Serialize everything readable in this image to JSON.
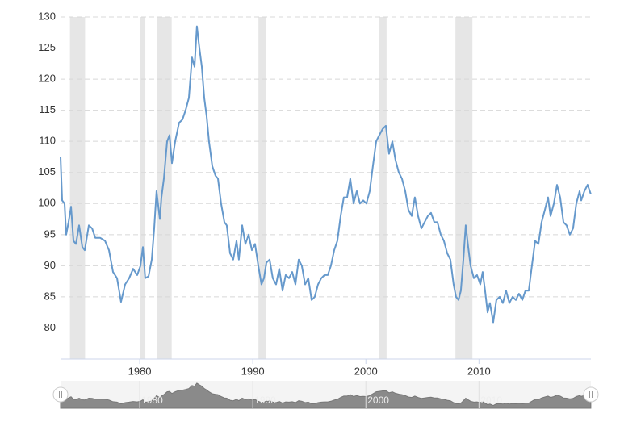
{
  "chart_data": {
    "type": "line",
    "color": "#6699cc",
    "grid": true,
    "recession_color": "#e6e6e6",
    "recessions": [
      [
        1973.83,
        1975.17
      ],
      [
        1980.0,
        1980.5
      ],
      [
        1981.5,
        1982.83
      ],
      [
        1990.5,
        1991.17
      ],
      [
        2001.17,
        2001.83
      ],
      [
        2007.92,
        2009.42
      ]
    ],
    "xlim": [
      1973,
      2019.9
    ],
    "xticks": [
      1980,
      1990,
      2000,
      2010
    ],
    "ylim": [
      75,
      130
    ],
    "yticks": [
      80,
      85,
      90,
      95,
      100,
      105,
      110,
      115,
      120,
      125,
      130
    ],
    "x": [
      1973.0,
      1973.14,
      1973.36,
      1973.5,
      1973.71,
      1973.93,
      1974.14,
      1974.36,
      1974.64,
      1974.93,
      1975.14,
      1975.5,
      1975.79,
      1976.07,
      1976.5,
      1976.93,
      1977.28,
      1977.64,
      1978.0,
      1978.35,
      1978.71,
      1979.07,
      1979.42,
      1979.78,
      1980.07,
      1980.28,
      1980.49,
      1980.78,
      1981.07,
      1981.28,
      1981.49,
      1981.78,
      1981.92,
      1982.14,
      1982.42,
      1982.64,
      1982.85,
      1983.14,
      1983.49,
      1983.78,
      1984.06,
      1984.35,
      1984.63,
      1984.85,
      1985.06,
      1985.28,
      1985.49,
      1985.71,
      1985.92,
      1986.13,
      1986.42,
      1986.7,
      1986.92,
      1987.2,
      1987.49,
      1987.7,
      1987.99,
      1988.27,
      1988.56,
      1988.77,
      1989.06,
      1989.35,
      1989.63,
      1989.92,
      1990.2,
      1990.49,
      1990.77,
      1990.99,
      1991.2,
      1991.49,
      1991.77,
      1992.06,
      1992.34,
      1992.63,
      1992.91,
      1993.2,
      1993.49,
      1993.77,
      1994.06,
      1994.34,
      1994.63,
      1994.91,
      1995.2,
      1995.48,
      1995.77,
      1996.06,
      1996.34,
      1996.63,
      1996.91,
      1997.2,
      1997.48,
      1997.77,
      1998.05,
      1998.34,
      1998.62,
      1998.91,
      1999.2,
      1999.48,
      1999.77,
      2000.05,
      2000.34,
      2000.62,
      2000.91,
      2001.19,
      2001.48,
      2001.77,
      2002.05,
      2002.34,
      2002.62,
      2002.91,
      2003.19,
      2003.48,
      2003.76,
      2004.05,
      2004.33,
      2004.62,
      2004.91,
      2005.19,
      2005.48,
      2005.76,
      2006.05,
      2006.33,
      2006.62,
      2006.9,
      2007.19,
      2007.47,
      2007.76,
      2007.97,
      2008.19,
      2008.4,
      2008.62,
      2008.83,
      2009.05,
      2009.26,
      2009.55,
      2009.83,
      2010.12,
      2010.33,
      2010.54,
      2010.76,
      2010.97,
      2011.26,
      2011.54,
      2011.83,
      2012.11,
      2012.4,
      2012.69,
      2012.97,
      2013.26,
      2013.54,
      2013.83,
      2014.11,
      2014.4,
      2014.68,
      2014.97,
      2015.26,
      2015.54,
      2015.83,
      2016.11,
      2016.33,
      2016.62,
      2016.9,
      2017.18,
      2017.47,
      2017.75,
      2018.04,
      2018.32,
      2018.61,
      2018.9,
      2019.04,
      2019.32,
      2019.61,
      2019.89
    ],
    "values": [
      107.5,
      100.5,
      100,
      95,
      97,
      99.5,
      94,
      93.5,
      96.5,
      93,
      92.5,
      96.5,
      96,
      94.5,
      94.5,
      94,
      92.5,
      89,
      88,
      84.2,
      87,
      88,
      89.5,
      88.5,
      90,
      93,
      88,
      88.3,
      91,
      96,
      102,
      97.5,
      101,
      104,
      110,
      111,
      106.5,
      110,
      113,
      113.5,
      115,
      117,
      123.5,
      122,
      128.5,
      125,
      122,
      117,
      114,
      110,
      106,
      104.5,
      104,
      100,
      97,
      96.5,
      92,
      91,
      94,
      91,
      96.5,
      93.5,
      95,
      92.5,
      93.5,
      90,
      87,
      88,
      90.5,
      91,
      88,
      87,
      89.5,
      86,
      88.5,
      88,
      89,
      87,
      91,
      90,
      87,
      88,
      84.5,
      85,
      87,
      88,
      88.5,
      88.5,
      90,
      92.5,
      94,
      98,
      101,
      101,
      104,
      100,
      102,
      100,
      100.5,
      100,
      102,
      106,
      110,
      111,
      112,
      112.5,
      108,
      110,
      107,
      105,
      104,
      102,
      99,
      98,
      101,
      98,
      96,
      97,
      98,
      98.5,
      97,
      97,
      95,
      94,
      92,
      91,
      87,
      85,
      84.5,
      86,
      91,
      96.5,
      93,
      90,
      88,
      88.5,
      87,
      89,
      86,
      82.5,
      84,
      80.9,
      84.5,
      85,
      84,
      86,
      84,
      85,
      84.5,
      85.5,
      84.5,
      86,
      86,
      90,
      94,
      93.5,
      97,
      99,
      101,
      98,
      100,
      103,
      101,
      97,
      96.5,
      95,
      96,
      100,
      102,
      100.5,
      102,
      103,
      101.5
    ]
  }
}
